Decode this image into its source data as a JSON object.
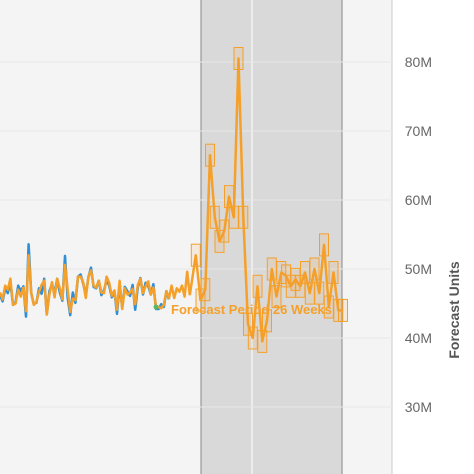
{
  "chart_data": {
    "type": "line",
    "title": "",
    "xlabel": "",
    "ylabel": "Forecast Units",
    "ylim": [
      25,
      90
    ],
    "y_ticks": [
      30,
      40,
      50,
      60,
      70,
      80
    ],
    "y_tick_labels": [
      "30M",
      "40M",
      "50M",
      "60M",
      "70M",
      "80M"
    ],
    "y_unit": "millions of units",
    "grid": true,
    "forecast_shading": true,
    "annotation": "Forecast Period 26 Weeks",
    "series": [
      {
        "role": "actual",
        "color": "#2e8fd6",
        "values": [
          46.2,
          45.3,
          47.2,
          46.5,
          48.1,
          44.8,
          45.2,
          47.6,
          46.8,
          47.5,
          43.1,
          53.6,
          46.5,
          44.9,
          45.1,
          47.2,
          46.4,
          48.6,
          43.4,
          46.8,
          47.8,
          46.5,
          48.6,
          46.6,
          45.4,
          51.9,
          45.9,
          43.3,
          46.6,
          45.1,
          48.9,
          49.2,
          47.9,
          46.2,
          48.8,
          50.2,
          47.4,
          47.2,
          48.3,
          46.2,
          46.9,
          48.4,
          47.6,
          45.9,
          46.8,
          43.5,
          47.8,
          44.4,
          47.4,
          46.8,
          46.1,
          47.7,
          44.1,
          47.3,
          48.7,
          46.3,
          48.0,
          47.6,
          46.3,
          47.8,
          44.2,
          44.2,
          44.9,
          44.5,
          46.8,
          45.6
        ]
      },
      {
        "role": "fitted",
        "color": "#f5a02a",
        "values": [
          46.6,
          45.6,
          47.6,
          47.0,
          48.6,
          44.8,
          45.0,
          47.0,
          46.0,
          47.3,
          43.9,
          52.0,
          46.6,
          44.8,
          45.2,
          46.7,
          47.7,
          48.3,
          43.4,
          46.3,
          48.1,
          45.9,
          48.6,
          47.2,
          45.6,
          50.6,
          47.1,
          43.8,
          45.7,
          45.5,
          48.9,
          48.9,
          48.1,
          45.8,
          48.9,
          49.8,
          47.6,
          47.3,
          48.3,
          46.6,
          46.5,
          48.9,
          48.0,
          46.1,
          46.9,
          44.1,
          48.3,
          44.2,
          47.2,
          46.3,
          46.6,
          47.1,
          44.9,
          47.7,
          48.6,
          46.5,
          47.5,
          48.2,
          46.3,
          47.3,
          44.5,
          44.5,
          44.3,
          44.8,
          46.8,
          45.8,
          47.6,
          45.8,
          47.2,
          46.7,
          47.6,
          46.0,
          49.6,
          46.2
        ]
      },
      {
        "role": "forecast",
        "color": "#f5a02a",
        "values": [
          52.0,
          45.5,
          47.0,
          66.5,
          57.5,
          54.0,
          55.5,
          60.5,
          57.5,
          80.5,
          57.5,
          42.0,
          40.0,
          47.5,
          39.5,
          42.5,
          50.0,
          46.0,
          49.5,
          49.0,
          47.5,
          48.5,
          47.5,
          49.5,
          46.5,
          50.0,
          46.5,
          53.5,
          44.5,
          49.5,
          44.0,
          44.0
        ]
      }
    ],
    "markers": {
      "green": "#5cb85c"
    }
  }
}
